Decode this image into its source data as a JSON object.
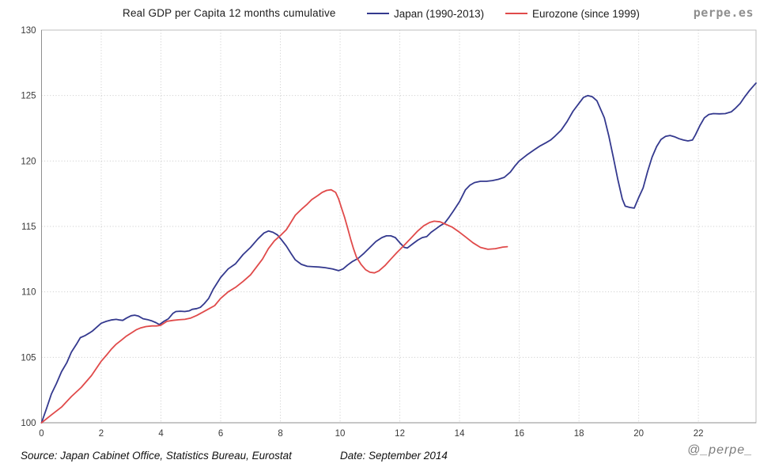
{
  "watermark": {
    "site": "perpe.es",
    "handle": "@_perpe_"
  },
  "footer": {
    "source": "Source: Japan Cabinet Office, Statistics Bureau, Eurostat",
    "date": "Date: September 2014"
  },
  "chart_data": {
    "type": "line",
    "title": "Real GDP per Capita 12 months cumulative",
    "xlabel": "",
    "ylabel": "",
    "xlim": [
      0,
      23.93
    ],
    "ylim": [
      100,
      130
    ],
    "x_ticks": [
      0,
      2,
      4,
      6,
      8,
      10,
      12,
      14,
      16,
      18,
      20,
      22
    ],
    "y_ticks": [
      100,
      105,
      110,
      115,
      120,
      125,
      130
    ],
    "grid": "dotted",
    "legend_position": "top",
    "colors": {
      "grid": "#c9c9c9",
      "border": "#bdbdbd",
      "axis": "#8f8f8f",
      "text": "#3a3a3a"
    },
    "series": [
      {
        "name": "Japan (1990-2013)",
        "color": "#34398e",
        "points": [
          [
            0,
            100
          ],
          [
            0.17,
            101.1
          ],
          [
            0.33,
            102.2
          ],
          [
            0.5,
            103.0
          ],
          [
            0.67,
            103.9
          ],
          [
            0.85,
            104.6
          ],
          [
            1.0,
            105.4
          ],
          [
            1.17,
            106.0
          ],
          [
            1.3,
            106.5
          ],
          [
            1.45,
            106.65
          ],
          [
            1.6,
            106.85
          ],
          [
            1.7,
            107.0
          ],
          [
            1.85,
            107.3
          ],
          [
            2.0,
            107.6
          ],
          [
            2.17,
            107.75
          ],
          [
            2.33,
            107.85
          ],
          [
            2.5,
            107.9
          ],
          [
            2.62,
            107.85
          ],
          [
            2.72,
            107.82
          ],
          [
            2.85,
            108.0
          ],
          [
            3.0,
            108.18
          ],
          [
            3.12,
            108.22
          ],
          [
            3.25,
            108.15
          ],
          [
            3.4,
            107.95
          ],
          [
            3.55,
            107.88
          ],
          [
            3.7,
            107.78
          ],
          [
            3.83,
            107.65
          ],
          [
            3.95,
            107.5
          ],
          [
            4.1,
            107.75
          ],
          [
            4.25,
            107.95
          ],
          [
            4.4,
            108.35
          ],
          [
            4.5,
            108.5
          ],
          [
            4.65,
            108.52
          ],
          [
            4.8,
            108.5
          ],
          [
            4.95,
            108.55
          ],
          [
            5.05,
            108.67
          ],
          [
            5.2,
            108.72
          ],
          [
            5.32,
            108.82
          ],
          [
            5.45,
            109.1
          ],
          [
            5.6,
            109.5
          ],
          [
            5.75,
            110.2
          ],
          [
            6.0,
            111.1
          ],
          [
            6.25,
            111.75
          ],
          [
            6.5,
            112.15
          ],
          [
            6.75,
            112.85
          ],
          [
            7.0,
            113.4
          ],
          [
            7.25,
            114.05
          ],
          [
            7.45,
            114.5
          ],
          [
            7.6,
            114.65
          ],
          [
            7.75,
            114.55
          ],
          [
            7.9,
            114.35
          ],
          [
            8.05,
            113.95
          ],
          [
            8.2,
            113.5
          ],
          [
            8.35,
            112.95
          ],
          [
            8.5,
            112.45
          ],
          [
            8.7,
            112.1
          ],
          [
            8.9,
            111.95
          ],
          [
            9.1,
            111.92
          ],
          [
            9.3,
            111.9
          ],
          [
            9.5,
            111.85
          ],
          [
            9.75,
            111.75
          ],
          [
            9.95,
            111.62
          ],
          [
            10.1,
            111.75
          ],
          [
            10.25,
            112.05
          ],
          [
            10.4,
            112.3
          ],
          [
            10.6,
            112.55
          ],
          [
            10.8,
            112.95
          ],
          [
            11.0,
            113.4
          ],
          [
            11.2,
            113.85
          ],
          [
            11.4,
            114.15
          ],
          [
            11.55,
            114.28
          ],
          [
            11.7,
            114.28
          ],
          [
            11.85,
            114.15
          ],
          [
            12.0,
            113.75
          ],
          [
            12.15,
            113.4
          ],
          [
            12.25,
            113.35
          ],
          [
            12.45,
            113.7
          ],
          [
            12.6,
            113.95
          ],
          [
            12.75,
            114.15
          ],
          [
            12.9,
            114.22
          ],
          [
            13.05,
            114.55
          ],
          [
            13.2,
            114.8
          ],
          [
            13.35,
            115.05
          ],
          [
            13.5,
            115.25
          ],
          [
            13.65,
            115.7
          ],
          [
            13.8,
            116.2
          ],
          [
            14.0,
            116.9
          ],
          [
            14.2,
            117.8
          ],
          [
            14.35,
            118.15
          ],
          [
            14.5,
            118.35
          ],
          [
            14.7,
            118.45
          ],
          [
            14.9,
            118.45
          ],
          [
            15.1,
            118.5
          ],
          [
            15.3,
            118.6
          ],
          [
            15.5,
            118.75
          ],
          [
            15.7,
            119.15
          ],
          [
            15.85,
            119.6
          ],
          [
            16.0,
            120.0
          ],
          [
            16.25,
            120.45
          ],
          [
            16.5,
            120.85
          ],
          [
            16.7,
            121.15
          ],
          [
            16.9,
            121.4
          ],
          [
            17.05,
            121.6
          ],
          [
            17.2,
            121.9
          ],
          [
            17.4,
            122.35
          ],
          [
            17.6,
            123.0
          ],
          [
            17.8,
            123.8
          ],
          [
            18.0,
            124.4
          ],
          [
            18.15,
            124.85
          ],
          [
            18.3,
            125.0
          ],
          [
            18.45,
            124.9
          ],
          [
            18.6,
            124.6
          ],
          [
            18.85,
            123.3
          ],
          [
            19.0,
            121.9
          ],
          [
            19.15,
            120.3
          ],
          [
            19.3,
            118.6
          ],
          [
            19.45,
            117.1
          ],
          [
            19.55,
            116.55
          ],
          [
            19.7,
            116.45
          ],
          [
            19.85,
            116.4
          ],
          [
            20.0,
            117.2
          ],
          [
            20.15,
            117.95
          ],
          [
            20.3,
            119.2
          ],
          [
            20.45,
            120.3
          ],
          [
            20.6,
            121.1
          ],
          [
            20.75,
            121.65
          ],
          [
            20.9,
            121.88
          ],
          [
            21.05,
            121.95
          ],
          [
            21.2,
            121.85
          ],
          [
            21.35,
            121.7
          ],
          [
            21.5,
            121.6
          ],
          [
            21.65,
            121.53
          ],
          [
            21.8,
            121.6
          ],
          [
            21.9,
            122.0
          ],
          [
            22.05,
            122.7
          ],
          [
            22.2,
            123.3
          ],
          [
            22.35,
            123.55
          ],
          [
            22.5,
            123.62
          ],
          [
            22.7,
            123.6
          ],
          [
            22.9,
            123.62
          ],
          [
            23.1,
            123.75
          ],
          [
            23.25,
            124.05
          ],
          [
            23.4,
            124.4
          ],
          [
            23.55,
            124.9
          ],
          [
            23.7,
            125.35
          ],
          [
            23.85,
            125.75
          ],
          [
            23.93,
            125.95
          ]
        ]
      },
      {
        "name": "Eurozone (since 1999)",
        "color": "#e04a4a",
        "points": [
          [
            0,
            100
          ],
          [
            0.33,
            100.6
          ],
          [
            0.67,
            101.2
          ],
          [
            1.0,
            102.0
          ],
          [
            1.33,
            102.7
          ],
          [
            1.67,
            103.6
          ],
          [
            2.0,
            104.7
          ],
          [
            2.17,
            105.15
          ],
          [
            2.33,
            105.6
          ],
          [
            2.5,
            106.0
          ],
          [
            2.67,
            106.3
          ],
          [
            2.83,
            106.6
          ],
          [
            3.0,
            106.85
          ],
          [
            3.17,
            107.1
          ],
          [
            3.33,
            107.25
          ],
          [
            3.5,
            107.35
          ],
          [
            3.7,
            107.4
          ],
          [
            3.85,
            107.4
          ],
          [
            4.0,
            107.45
          ],
          [
            4.2,
            107.75
          ],
          [
            4.4,
            107.82
          ],
          [
            4.6,
            107.87
          ],
          [
            4.8,
            107.9
          ],
          [
            5.0,
            108.0
          ],
          [
            5.2,
            108.2
          ],
          [
            5.4,
            108.45
          ],
          [
            5.6,
            108.7
          ],
          [
            5.8,
            108.95
          ],
          [
            6.0,
            109.5
          ],
          [
            6.25,
            110.0
          ],
          [
            6.5,
            110.35
          ],
          [
            6.75,
            110.8
          ],
          [
            7.0,
            111.3
          ],
          [
            7.2,
            111.9
          ],
          [
            7.4,
            112.5
          ],
          [
            7.6,
            113.3
          ],
          [
            7.8,
            113.9
          ],
          [
            8.0,
            114.3
          ],
          [
            8.2,
            114.75
          ],
          [
            8.35,
            115.3
          ],
          [
            8.5,
            115.85
          ],
          [
            8.7,
            116.3
          ],
          [
            8.9,
            116.7
          ],
          [
            9.05,
            117.05
          ],
          [
            9.25,
            117.35
          ],
          [
            9.4,
            117.6
          ],
          [
            9.55,
            117.75
          ],
          [
            9.7,
            117.8
          ],
          [
            9.85,
            117.6
          ],
          [
            9.95,
            117.1
          ],
          [
            10.05,
            116.4
          ],
          [
            10.15,
            115.7
          ],
          [
            10.25,
            114.9
          ],
          [
            10.35,
            114.05
          ],
          [
            10.45,
            113.3
          ],
          [
            10.55,
            112.65
          ],
          [
            10.7,
            112.1
          ],
          [
            10.85,
            111.7
          ],
          [
            11.0,
            111.5
          ],
          [
            11.15,
            111.45
          ],
          [
            11.3,
            111.6
          ],
          [
            11.5,
            112.0
          ],
          [
            11.7,
            112.5
          ],
          [
            11.9,
            113.0
          ],
          [
            12.1,
            113.45
          ],
          [
            12.35,
            114.05
          ],
          [
            12.6,
            114.65
          ],
          [
            12.8,
            115.05
          ],
          [
            13.0,
            115.3
          ],
          [
            13.15,
            115.4
          ],
          [
            13.35,
            115.35
          ],
          [
            13.55,
            115.15
          ],
          [
            13.75,
            114.95
          ],
          [
            14.0,
            114.55
          ],
          [
            14.2,
            114.2
          ],
          [
            14.45,
            113.75
          ],
          [
            14.7,
            113.4
          ],
          [
            14.95,
            113.25
          ],
          [
            15.2,
            113.3
          ],
          [
            15.45,
            113.42
          ],
          [
            15.6,
            113.45
          ]
        ]
      }
    ]
  }
}
